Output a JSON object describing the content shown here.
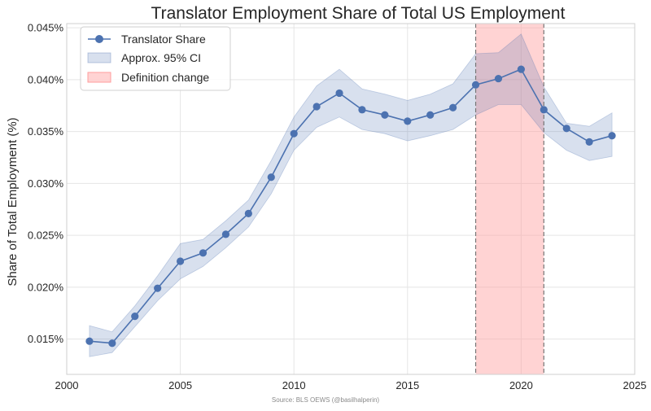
{
  "chart_data": {
    "type": "line",
    "title": "Translator Employment Share of Total US Employment",
    "xlabel": "",
    "ylabel": "Share of Total Employment (%)",
    "source": "Source: BLS OEWS (@basilhalperin)",
    "xlim": [
      2000,
      2025
    ],
    "ylim": [
      0.0116,
      0.0454
    ],
    "x_ticks": [
      2000,
      2005,
      2010,
      2015,
      2020,
      2025
    ],
    "x_tick_labels": [
      "2000",
      "2005",
      "2010",
      "2015",
      "2020",
      "2025"
    ],
    "y_ticks": [
      0.015,
      0.02,
      0.025,
      0.03,
      0.035,
      0.04,
      0.045
    ],
    "y_tick_labels": [
      "0.015%",
      "0.020%",
      "0.025%",
      "0.030%",
      "0.035%",
      "0.040%",
      "0.045%"
    ],
    "grid": true,
    "legend_position": "top-left",
    "series": [
      {
        "name": "Translator Share",
        "color": "#4c72b0",
        "x": [
          2001,
          2002,
          2003,
          2004,
          2005,
          2006,
          2007,
          2008,
          2009,
          2010,
          2011,
          2012,
          2013,
          2014,
          2015,
          2016,
          2017,
          2018,
          2019,
          2020,
          2021,
          2022,
          2023,
          2024
        ],
        "y": [
          0.0148,
          0.0146,
          0.0172,
          0.0199,
          0.0225,
          0.0233,
          0.0251,
          0.0271,
          0.0306,
          0.0348,
          0.0374,
          0.0387,
          0.0371,
          0.0366,
          0.036,
          0.0366,
          0.0373,
          0.0395,
          0.0401,
          0.041,
          0.0371,
          0.0353,
          0.034,
          0.0346
        ]
      }
    ],
    "confidence_band": {
      "name": "Approx. 95% CI",
      "color": "#4c72b0",
      "lower": [
        0.0133,
        0.0137,
        0.0162,
        0.0187,
        0.0208,
        0.022,
        0.0238,
        0.0258,
        0.029,
        0.0332,
        0.0354,
        0.0364,
        0.0352,
        0.0348,
        0.0341,
        0.0346,
        0.0352,
        0.0366,
        0.0376,
        0.0376,
        0.0349,
        0.0332,
        0.0322,
        0.0326
      ],
      "upper": [
        0.0163,
        0.0157,
        0.0182,
        0.0211,
        0.0242,
        0.0246,
        0.0264,
        0.0284,
        0.0322,
        0.0364,
        0.0394,
        0.041,
        0.0391,
        0.0386,
        0.038,
        0.0386,
        0.0396,
        0.0425,
        0.0426,
        0.0444,
        0.0393,
        0.0358,
        0.0355,
        0.0368
      ]
    },
    "highlight_region": {
      "name": "Definition change",
      "color": "#ff9e9e",
      "x_start": 2018,
      "x_end": 2021,
      "boundary_lines": [
        2018,
        2021
      ]
    }
  }
}
